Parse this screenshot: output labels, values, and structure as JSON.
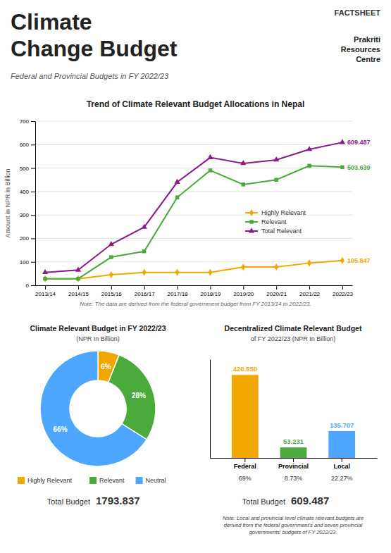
{
  "title": "Climate\nChange Budget",
  "subtitle": "Federal and Provincial Budgets in FY 2022/23",
  "annotations": [
    "FACTSHEET",
    "Prakriti\nResources\nCentre"
  ],
  "chart_data": [
    {
      "type": "line",
      "title": "Trend of Climate Relevant Budget Allocations in Nepal",
      "ylabel": "Amount in NPR in Billion",
      "categories": [
        "2013/14",
        "2014/15",
        "2015/16",
        "2016/17",
        "2017/18",
        "2018/19",
        "2019/20",
        "2020/21",
        "2021/22",
        "2022/23"
      ],
      "series": [
        {
          "name": "Highly Relevant",
          "color": "#f0a800",
          "marker": "diamond",
          "values": [
            28,
            28,
            45,
            55,
            55,
            55,
            78,
            78,
            95,
            105.847
          ]
        },
        {
          "name": "Relevant",
          "color": "#4aaa3c",
          "marker": "square",
          "values": [
            28,
            28,
            120,
            145,
            375,
            490,
            430,
            450,
            510,
            503.639
          ]
        },
        {
          "name": "Total Relevant",
          "color": "#8b1a8b",
          "marker": "triangle",
          "values": [
            55,
            65,
            175,
            248,
            440,
            545,
            520,
            535,
            580,
            609.487
          ]
        }
      ],
      "ylim": [
        0,
        700
      ],
      "yticks": [
        0,
        100,
        200,
        300,
        400,
        500,
        600,
        700
      ],
      "grid": true,
      "legend": "lower right",
      "annotations": [
        "Note: The data are derived from the federal government budget from FY 2013/14 to 2022/23."
      ]
    },
    {
      "type": "pie",
      "title": "Climate Relevant Budget in FY 2022/23",
      "subtitle": "(NPR In Billion)",
      "categories": [
        "Highly Relevant",
        "Relevant",
        "Neutral"
      ],
      "values": [
        6,
        28,
        66
      ],
      "value_labels": [
        "6%",
        "28%",
        "66%"
      ],
      "data_labels": true,
      "colors": [
        "#f0a800",
        "#4aaa3c",
        "#4da6ff"
      ],
      "legend": "bottom",
      "annotations": [
        "Total Budget",
        "1793.837"
      ]
    },
    {
      "type": "bar",
      "title": "Decentralized Climate Relevant Budget",
      "subtitle": "of FY 2022/23 (NPR In Billion)",
      "categories": [
        "Federal",
        "Provincial",
        "Local"
      ],
      "values": [
        420.55,
        53.231,
        135.707
      ],
      "value_labels": [
        "420.550",
        "53.231",
        "135.707"
      ],
      "data_labels": true,
      "shares": [
        69,
        8.73,
        22.27
      ],
      "share_labels": [
        "69%",
        "8.73%",
        "22.27%"
      ],
      "colors": [
        "#f0a800",
        "#4aaa3c",
        "#4da6ff"
      ],
      "ylim": [
        0,
        500
      ],
      "tick_labels": "x",
      "annotations": [
        "Total Budget",
        "609.487",
        "Note: Local and provincial level climate relevant budgets are\nderived from the federal government's and seven provincial\ngovernments' budgets of FY 2022/23."
      ]
    }
  ]
}
